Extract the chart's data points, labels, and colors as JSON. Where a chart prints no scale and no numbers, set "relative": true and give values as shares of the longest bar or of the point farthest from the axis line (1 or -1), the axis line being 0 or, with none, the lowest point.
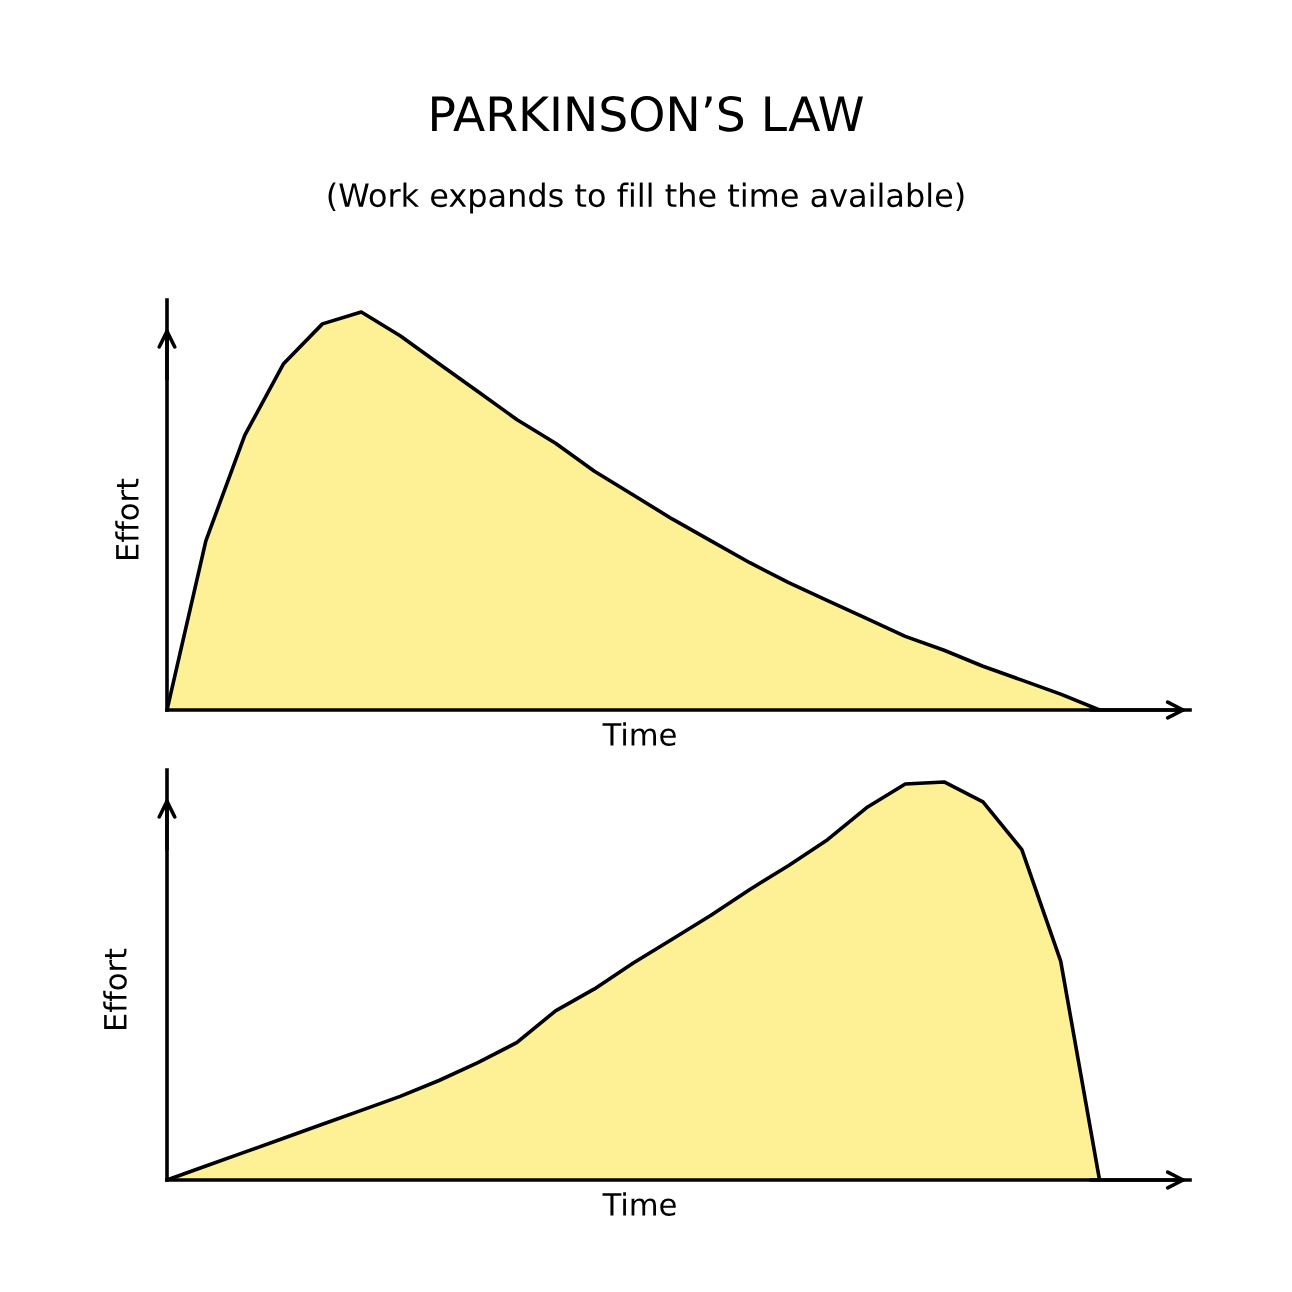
{
  "chart_data": [
    {
      "type": "area",
      "title": "PARKINSON’S LAW",
      "subtitle": "(Work expands to fill the time available)",
      "xlabel": "Time",
      "ylabel": "Effort",
      "relative": true,
      "grid": false,
      "legend": false,
      "categories": [
        null,
        null,
        null,
        null,
        null,
        null,
        null,
        null,
        null,
        null,
        null,
        null,
        null,
        null,
        null,
        null,
        null,
        null,
        null,
        null,
        null,
        null,
        null,
        null,
        null
      ],
      "series": [
        {
          "color": "#fdf095",
          "values": [
            0,
            0.425,
            0.69,
            0.87,
            0.97,
            1.0,
            0.94,
            0.87,
            0.8,
            0.73,
            0.67,
            0.6,
            0.54,
            0.48,
            0.425,
            0.37,
            0.32,
            0.275,
            0.23,
            0.185,
            0.15,
            0.11,
            0.075,
            0.04,
            0
          ]
        }
      ]
    },
    {
      "type": "area",
      "xlabel": "Time",
      "ylabel": "Effort",
      "relative": true,
      "grid": false,
      "legend": false,
      "categories": [
        null,
        null,
        null,
        null,
        null,
        null,
        null,
        null,
        null,
        null,
        null,
        null,
        null,
        null,
        null,
        null,
        null,
        null,
        null,
        null,
        null,
        null,
        null,
        null,
        null
      ],
      "series": [
        {
          "color": "#fdf095",
          "values": [
            0,
            0.035,
            0.07,
            0.105,
            0.14,
            0.175,
            0.21,
            0.25,
            0.295,
            0.345,
            0.425,
            0.48,
            0.545,
            0.605,
            0.665,
            0.73,
            0.79,
            0.855,
            0.935,
            0.995,
            1.0,
            0.95,
            0.83,
            0.55,
            0
          ]
        }
      ]
    }
  ]
}
